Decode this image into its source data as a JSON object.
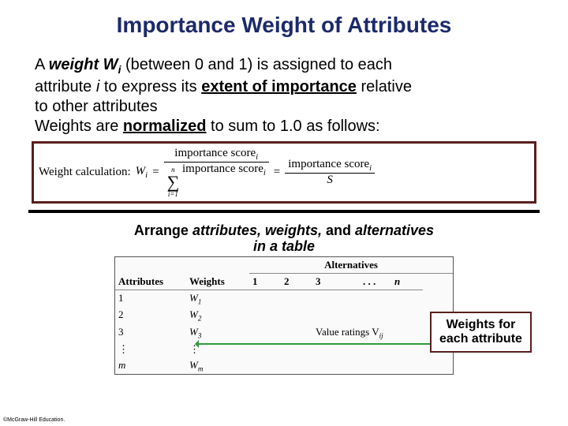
{
  "colors": {
    "title_color": "#1c2a6b",
    "border_maroon": "#5a1e1e",
    "arrow_green": "#2e9c3a",
    "text_black": "#000000"
  },
  "title": {
    "text": "Importance Weight of Attributes",
    "fontsize": 28
  },
  "para": {
    "fontsize": 20,
    "l1a": "A ",
    "l1b": "weight W",
    "l1b_sub": "i",
    "l1c": "  (between 0 and 1) is assigned to each",
    "l2a": "attribute ",
    "l2b": "i",
    "l2c": " to express its ",
    "l2d": "extent of importance",
    "l2e": " relative",
    "l3": "to other attributes",
    "l4a": "Weights are ",
    "l4b": "normalized",
    "l4c": " to sum to 1.0 as follows:"
  },
  "formula": {
    "label": "Weight calculation:",
    "Wi": "W",
    "Wi_sub": "i",
    "eq": " = ",
    "num1": "importance score",
    "num1_sub": "i",
    "sum_top": "n",
    "sum_bot": "i=1",
    "den1": "importance score",
    "den1_sub": "i",
    "num2": "importance score",
    "num2_sub": "i",
    "den2": "S",
    "fontsize": 15
  },
  "arrange": {
    "fontsize": 18,
    "a": "Arrange ",
    "b": "attributes, weights,",
    "c": " and ",
    "d": "alternatives",
    "e": "in a table"
  },
  "table": {
    "alt_header": "Alternatives",
    "col_attr": "Attributes",
    "col_w": "Weights",
    "cols_n": [
      "1",
      "2",
      "3",
      ". . .",
      "n"
    ],
    "rows_attr": [
      "1",
      "2",
      "3",
      "⋮",
      "m"
    ],
    "rows_w": [
      "W",
      "W",
      "W",
      "⋮",
      "W"
    ],
    "rows_w_sub": [
      "1",
      "2",
      "3",
      "",
      "m"
    ],
    "value_label": "Value ratings V",
    "value_sub": "ij"
  },
  "label_box": {
    "l1": "Weights for",
    "l2": "each attribute",
    "fontsize": 16
  },
  "copyright": "©McGraw-Hill Education."
}
